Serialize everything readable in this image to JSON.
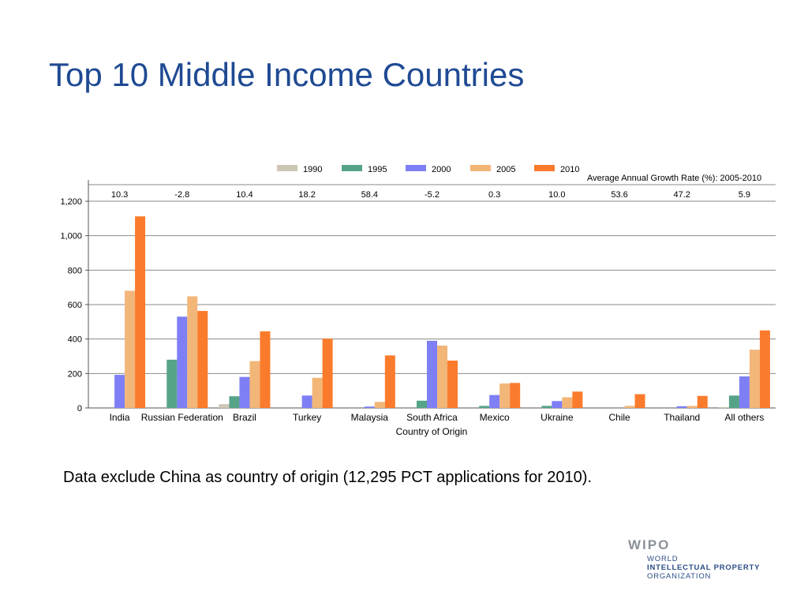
{
  "slide": {
    "title": "Top 10 Middle Income Countries",
    "footnote": "Data exclude China as country of origin (12,295 PCT applications for 2010)."
  },
  "logo": {
    "main": "WIPO",
    "lines": [
      "WORLD",
      "INTELLECTUAL PROPERTY",
      "ORGANIZATION"
    ]
  },
  "chart_data": {
    "type": "bar",
    "title": "",
    "xlabel": "Country of Origin",
    "ylabel": "",
    "ylim": [
      0,
      1200
    ],
    "yticks": [
      0,
      200,
      400,
      600,
      800,
      1000,
      1200
    ],
    "ytick_labels": [
      "0",
      "200",
      "400",
      "600",
      "800",
      "1,000",
      "1,200"
    ],
    "grid": true,
    "legend_position": "top",
    "categories": [
      "India",
      "Russian Federation",
      "Brazil",
      "Turkey",
      "Malaysia",
      "South Africa",
      "Mexico",
      "Ukraine",
      "Chile",
      "Thailand",
      "All others"
    ],
    "series": [
      {
        "name": "1990",
        "color": "#cdc6b5",
        "values": [
          0,
          0,
          22,
          0,
          0,
          0,
          0,
          0,
          0,
          0,
          5
        ]
      },
      {
        "name": "1995",
        "color": "#55a487",
        "values": [
          0,
          280,
          68,
          0,
          0,
          42,
          12,
          12,
          0,
          0,
          72
        ]
      },
      {
        "name": "2000",
        "color": "#7e7ff5",
        "values": [
          192,
          530,
          180,
          72,
          8,
          390,
          75,
          40,
          0,
          10,
          183
        ]
      },
      {
        "name": "2005",
        "color": "#f2b678",
        "values": [
          680,
          648,
          272,
          175,
          35,
          362,
          142,
          62,
          12,
          12,
          338
        ]
      },
      {
        "name": "2010",
        "color": "#fb7b2c",
        "values": [
          1112,
          563,
          445,
          402,
          305,
          275,
          145,
          95,
          80,
          70,
          450
        ]
      }
    ],
    "growth_rate_label": "Average Annual Growth Rate (%): 2005-2010",
    "growth_rates": [
      "10.3",
      "-2.8",
      "10.4",
      "18.2",
      "58.4",
      "-5.2",
      "0.3",
      "10.0",
      "53.6",
      "47.2",
      "5.9"
    ]
  }
}
